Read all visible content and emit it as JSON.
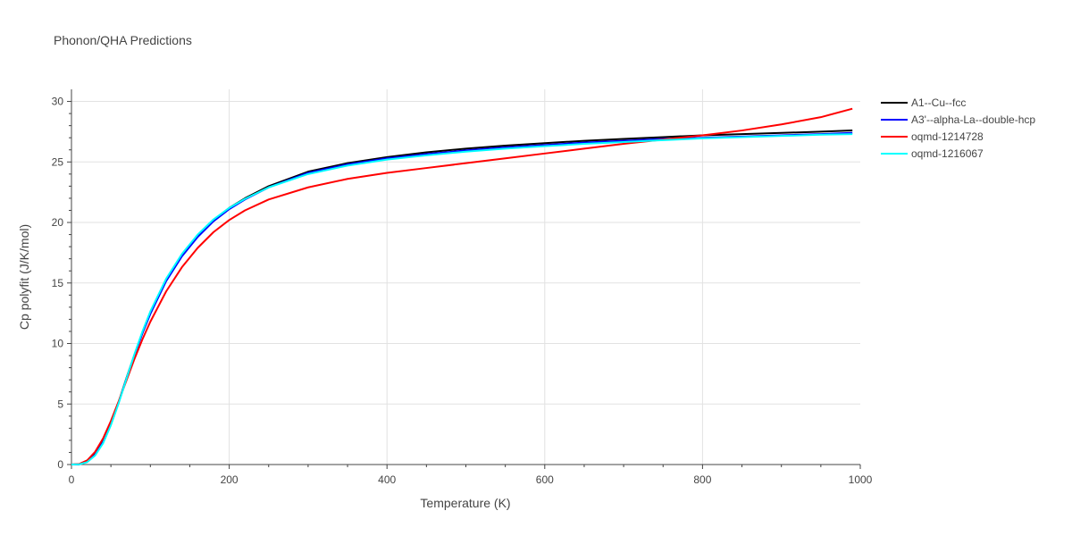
{
  "chart_data": {
    "type": "line",
    "title": "Phonon/QHA Predictions",
    "xlabel": "Temperature (K)",
    "ylabel": "Cp polyfit (J/K/mol)",
    "xlim": [
      0,
      1000
    ],
    "ylim": [
      0,
      31
    ],
    "xticks": [
      0,
      200,
      400,
      600,
      800,
      1000
    ],
    "yticks": [
      0,
      5,
      10,
      15,
      20,
      25,
      30
    ],
    "grid": true,
    "legend": "top-right-outside",
    "series": [
      {
        "name": "A1--Cu--fcc",
        "color": "#000000",
        "x": [
          0,
          10,
          20,
          30,
          40,
          50,
          60,
          70,
          80,
          90,
          100,
          120,
          140,
          160,
          180,
          200,
          220,
          250,
          300,
          350,
          400,
          450,
          500,
          550,
          600,
          650,
          700,
          750,
          800,
          850,
          900,
          950,
          990
        ],
        "y": [
          0,
          0.02,
          0.25,
          0.85,
          1.9,
          3.4,
          5.2,
          7.2,
          9.1,
          10.9,
          12.5,
          15.2,
          17.3,
          18.9,
          20.2,
          21.2,
          22.0,
          23.0,
          24.2,
          24.9,
          25.4,
          25.8,
          26.1,
          26.35,
          26.55,
          26.75,
          26.9,
          27.05,
          27.2,
          27.3,
          27.4,
          27.5,
          27.6
        ]
      },
      {
        "name": "A3'--alpha-La--double-hcp",
        "color": "#0000ff",
        "x": [
          0,
          10,
          20,
          30,
          40,
          50,
          60,
          70,
          80,
          90,
          100,
          120,
          140,
          160,
          180,
          200,
          220,
          250,
          300,
          350,
          400,
          450,
          500,
          550,
          600,
          650,
          700,
          750,
          800,
          850,
          900,
          950,
          990
        ],
        "y": [
          0,
          0.02,
          0.25,
          0.8,
          1.85,
          3.35,
          5.15,
          7.15,
          9.05,
          10.85,
          12.45,
          15.15,
          17.2,
          18.8,
          20.1,
          21.1,
          21.9,
          22.9,
          24.1,
          24.8,
          25.3,
          25.65,
          25.95,
          26.2,
          26.4,
          26.6,
          26.75,
          26.9,
          27.0,
          27.1,
          27.2,
          27.3,
          27.4
        ]
      },
      {
        "name": "oqmd-1214728",
        "color": "#ff0000",
        "x": [
          0,
          10,
          20,
          30,
          40,
          50,
          60,
          70,
          80,
          90,
          100,
          120,
          140,
          160,
          180,
          200,
          220,
          250,
          300,
          350,
          400,
          450,
          500,
          550,
          600,
          650,
          700,
          750,
          800,
          850,
          900,
          950,
          990
        ],
        "y": [
          0,
          0.05,
          0.35,
          1.05,
          2.15,
          3.6,
          5.25,
          7.0,
          8.75,
          10.35,
          11.8,
          14.3,
          16.3,
          17.9,
          19.2,
          20.2,
          21.0,
          21.9,
          22.9,
          23.6,
          24.1,
          24.5,
          24.9,
          25.3,
          25.7,
          26.1,
          26.5,
          26.85,
          27.2,
          27.6,
          28.1,
          28.7,
          29.4
        ]
      },
      {
        "name": "oqmd-1216067",
        "color": "#00ffff",
        "x": [
          0,
          10,
          20,
          30,
          40,
          50,
          60,
          70,
          80,
          90,
          100,
          120,
          140,
          160,
          180,
          200,
          220,
          250,
          300,
          350,
          400,
          450,
          500,
          550,
          600,
          650,
          700,
          750,
          800,
          850,
          900,
          950,
          990
        ],
        "y": [
          0,
          0.02,
          0.2,
          0.75,
          1.75,
          3.25,
          5.1,
          7.15,
          9.15,
          11.0,
          12.65,
          15.35,
          17.4,
          19.0,
          20.25,
          21.2,
          21.95,
          22.9,
          24.0,
          24.7,
          25.2,
          25.55,
          25.85,
          26.1,
          26.3,
          26.5,
          26.65,
          26.8,
          26.95,
          27.05,
          27.15,
          27.25,
          27.3
        ]
      }
    ]
  }
}
